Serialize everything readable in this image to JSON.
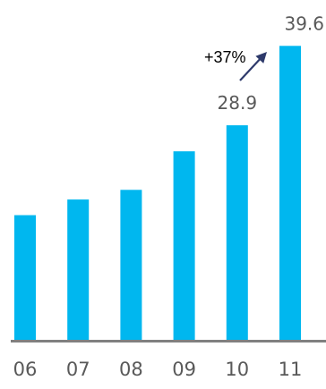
{
  "chart_data": {
    "type": "bar",
    "categories": [
      "06",
      "07",
      "08",
      "09",
      "10",
      "11"
    ],
    "values": [
      16.8,
      18.9,
      20.2,
      25.4,
      28.9,
      39.6
    ],
    "data_labels": [
      {
        "category": "10",
        "text": "28.9"
      },
      {
        "category": "11",
        "text": "39.6"
      }
    ],
    "annotation": {
      "text": "+37%",
      "from_category": "10",
      "to_category": "11"
    },
    "ylim": [
      0,
      40
    ],
    "grid": false,
    "colors": {
      "bar": "#00B7EF",
      "axis": "#808080",
      "arrow": "#2E3A6B",
      "text": "#595959"
    }
  }
}
